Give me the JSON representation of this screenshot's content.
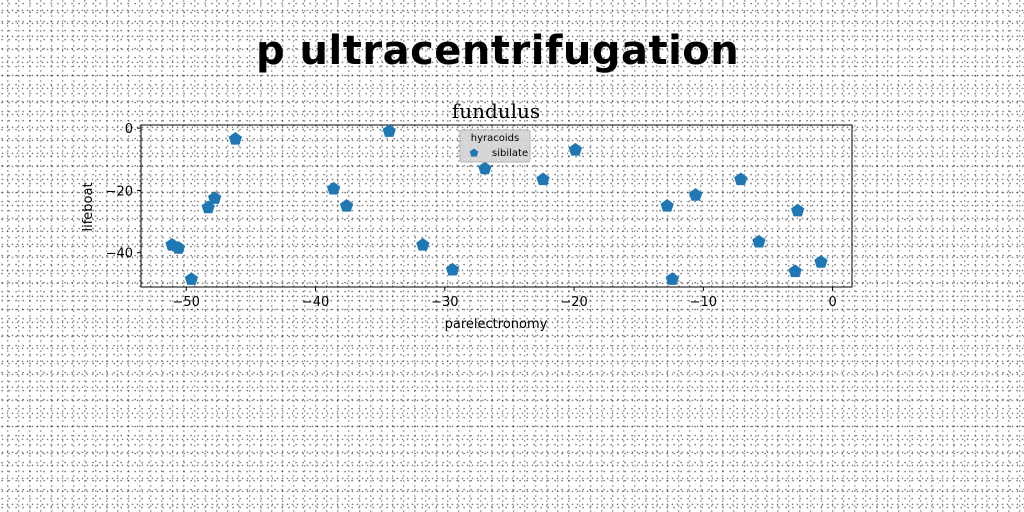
{
  "page": {
    "title": "p ultracentrifugation"
  },
  "chart_data": {
    "type": "scatter",
    "title": "fundulus",
    "xlabel": "parelectronomy",
    "ylabel": "lifeboat",
    "xlim": [
      -53.5,
      1.5
    ],
    "ylim": [
      -51,
      1
    ],
    "xticks": [
      -50,
      -40,
      -30,
      -20,
      -10,
      0
    ],
    "yticks": [
      0,
      -20,
      -40
    ],
    "grid": false,
    "legend": {
      "title": "hyracoids",
      "placement": "top-center"
    },
    "series": [
      {
        "name": "sibilate",
        "color": "#1f77b4",
        "marker": "pentagon",
        "points": [
          {
            "x": -51.1,
            "y": -37.5
          },
          {
            "x": -50.6,
            "y": -38.5
          },
          {
            "x": -49.6,
            "y": -48.5
          },
          {
            "x": -48.3,
            "y": -25.5
          },
          {
            "x": -47.8,
            "y": -22.5
          },
          {
            "x": -46.2,
            "y": -3.5
          },
          {
            "x": -38.6,
            "y": -19.5
          },
          {
            "x": -37.6,
            "y": -25
          },
          {
            "x": -34.3,
            "y": -1
          },
          {
            "x": -31.7,
            "y": -37.5
          },
          {
            "x": -29.4,
            "y": -45.5
          },
          {
            "x": -26.9,
            "y": -13
          },
          {
            "x": -22.4,
            "y": -16.5
          },
          {
            "x": -19.9,
            "y": -7
          },
          {
            "x": -12.8,
            "y": -25
          },
          {
            "x": -12.4,
            "y": -48.5
          },
          {
            "x": -10.6,
            "y": -21.5
          },
          {
            "x": -7.1,
            "y": -16.5
          },
          {
            "x": -5.7,
            "y": -36.5
          },
          {
            "x": -2.9,
            "y": -46
          },
          {
            "x": -2.7,
            "y": -26.5
          },
          {
            "x": -0.9,
            "y": -43
          }
        ]
      }
    ]
  }
}
